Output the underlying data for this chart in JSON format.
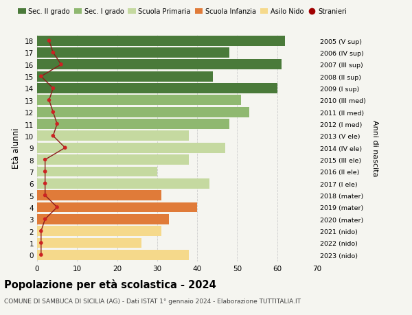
{
  "ages": [
    0,
    1,
    2,
    3,
    4,
    5,
    6,
    7,
    8,
    9,
    10,
    11,
    12,
    13,
    14,
    15,
    16,
    17,
    18
  ],
  "right_labels": [
    "2023 (nido)",
    "2022 (nido)",
    "2021 (nido)",
    "2020 (mater)",
    "2019 (mater)",
    "2018 (mater)",
    "2017 (I ele)",
    "2016 (II ele)",
    "2015 (III ele)",
    "2014 (IV ele)",
    "2013 (V ele)",
    "2012 (I med)",
    "2011 (II med)",
    "2010 (III med)",
    "2009 (I sup)",
    "2008 (II sup)",
    "2007 (III sup)",
    "2006 (IV sup)",
    "2005 (V sup)"
  ],
  "bar_values": [
    38,
    26,
    31,
    33,
    40,
    31,
    43,
    30,
    38,
    47,
    38,
    48,
    53,
    51,
    60,
    44,
    61,
    48,
    62
  ],
  "bar_colors": [
    "#f5d98b",
    "#f5d98b",
    "#f5d98b",
    "#e07b39",
    "#e07b39",
    "#e07b39",
    "#c5d9a0",
    "#c5d9a0",
    "#c5d9a0",
    "#c5d9a0",
    "#c5d9a0",
    "#8fb870",
    "#8fb870",
    "#8fb870",
    "#4a7a3a",
    "#4a7a3a",
    "#4a7a3a",
    "#4a7a3a",
    "#4a7a3a"
  ],
  "stranieri_values": [
    1,
    1,
    1,
    2,
    5,
    2,
    2,
    2,
    2,
    7,
    4,
    5,
    4,
    3,
    4,
    1,
    6,
    4,
    3
  ],
  "legend_labels": [
    "Sec. II grado",
    "Sec. I grado",
    "Scuola Primaria",
    "Scuola Infanzia",
    "Asilo Nido",
    "Stranieri"
  ],
  "legend_colors": [
    "#4a7a3a",
    "#8fb870",
    "#c5d9a0",
    "#e07b39",
    "#f5d98b",
    "#a00000"
  ],
  "ylabel": "Età alunni",
  "right_ylabel": "Anni di nascita",
  "title": "Popolazione per età scolastica - 2024",
  "subtitle": "COMUNE DI SAMBUCA DI SICILIA (AG) - Dati ISTAT 1° gennaio 2024 - Elaborazione TUTTITALIA.IT",
  "xlim": [
    0,
    70
  ],
  "background_color": "#f5f5f0",
  "grid_color": "#cccccc",
  "bar_height": 0.85,
  "stranieri_line_color": "#8b1a1a",
  "stranieri_dot_color": "#cc2222"
}
